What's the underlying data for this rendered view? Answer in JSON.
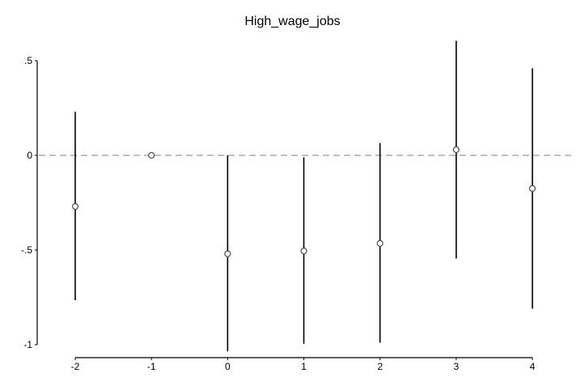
{
  "chart_data": {
    "type": "scatter",
    "title": "High_wage_jobs",
    "xlabel": "",
    "ylabel": "",
    "x_ticks": [
      {
        "value": -2,
        "label": "-2"
      },
      {
        "value": -1,
        "label": "-1"
      },
      {
        "value": 0,
        "label": "0"
      },
      {
        "value": 1,
        "label": "1"
      },
      {
        "value": 2,
        "label": "2"
      },
      {
        "value": 3,
        "label": "3"
      },
      {
        "value": 4,
        "label": "4"
      }
    ],
    "y_ticks": [
      {
        "value": 0.5,
        "label": ".5"
      },
      {
        "value": 0,
        "label": "0"
      },
      {
        "value": -0.5,
        "label": "-.5"
      },
      {
        "value": -1,
        "label": "-1"
      }
    ],
    "xlim": [
      -2,
      4
    ],
    "ylim": [
      -1,
      0.5
    ],
    "reference_line": {
      "y": 0,
      "style": "dashed",
      "color": "#999999"
    },
    "grid": false,
    "series": [
      {
        "marker": "hollow-circle",
        "points": [
          {
            "x": -2,
            "y": -0.27,
            "ci_low": -0.765,
            "ci_high": 0.23
          },
          {
            "x": -1,
            "y": 0.0,
            "ci_low": 0.0,
            "ci_high": 0.0
          },
          {
            "x": 0,
            "y": -0.52,
            "ci_low": -1.035,
            "ci_high": 0.0
          },
          {
            "x": 1,
            "y": -0.505,
            "ci_low": -0.995,
            "ci_high": -0.01
          },
          {
            "x": 2,
            "y": -0.465,
            "ci_low": -0.99,
            "ci_high": 0.065
          },
          {
            "x": 3,
            "y": 0.03,
            "ci_low": -0.545,
            "ci_high": 0.605
          },
          {
            "x": 4,
            "y": -0.175,
            "ci_low": -0.81,
            "ci_high": 0.46
          }
        ]
      }
    ],
    "colors": {
      "marker_stroke": "#555555",
      "error_bar": "#000000",
      "axis": "#000000",
      "reference_line": "#999999"
    }
  }
}
